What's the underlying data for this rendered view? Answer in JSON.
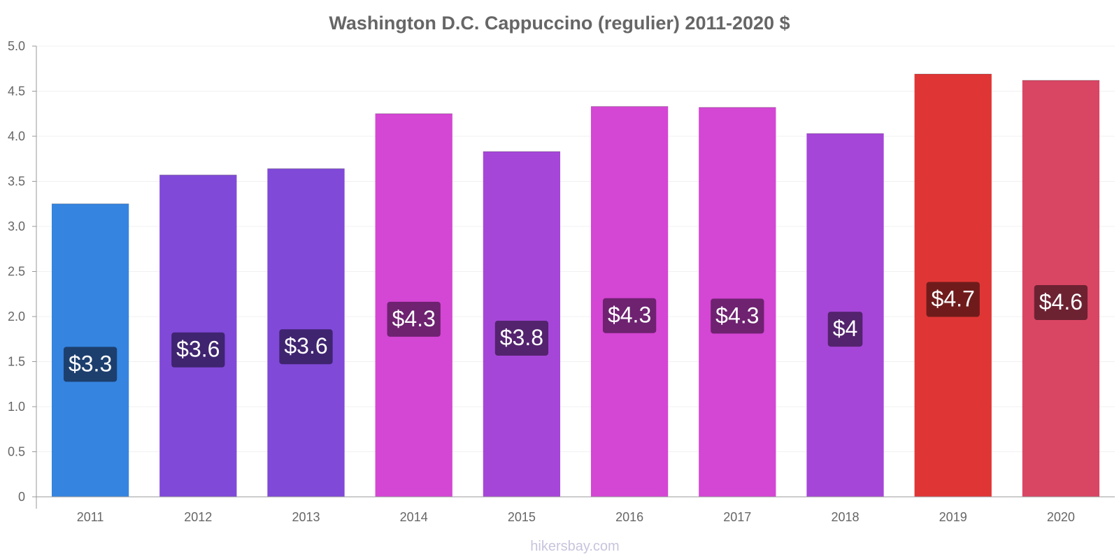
{
  "chart_data": {
    "type": "bar",
    "title": "Washington D.C. Cappuccino (regulier) 2011-2020 $",
    "categories": [
      "2011",
      "2012",
      "2013",
      "2014",
      "2015",
      "2016",
      "2017",
      "2018",
      "2019",
      "2020"
    ],
    "values": [
      3.25,
      3.57,
      3.64,
      4.25,
      3.83,
      4.33,
      4.32,
      4.03,
      4.69,
      4.62
    ],
    "data_labels": [
      "$3.3",
      "$3.6",
      "$3.6",
      "$4.3",
      "$3.8",
      "$4.3",
      "$4.3",
      "$4",
      "$4.7",
      "$4.6"
    ],
    "bar_colors": [
      "#3584e0",
      "#8049d8",
      "#8049d8",
      "#d446d4",
      "#a646d8",
      "#d446d4",
      "#d446d4",
      "#a646d8",
      "#e03535",
      "#d94664"
    ],
    "label_bg_colors": [
      "#1d3f6e",
      "#3f2470",
      "#3f2470",
      "#6e2270",
      "#53236e",
      "#6e2270",
      "#6e2270",
      "#53236e",
      "#701b1b",
      "#6d2232"
    ],
    "yticks": [
      "0",
      "0.5",
      "1.0",
      "1.5",
      "2.0",
      "2.5",
      "3.0",
      "3.5",
      "4.0",
      "4.5",
      "5.0"
    ],
    "ylim": [
      0,
      5
    ],
    "xlabel": "",
    "ylabel": "",
    "grid": true,
    "legend": "none"
  },
  "watermark": "hikersbay.com"
}
